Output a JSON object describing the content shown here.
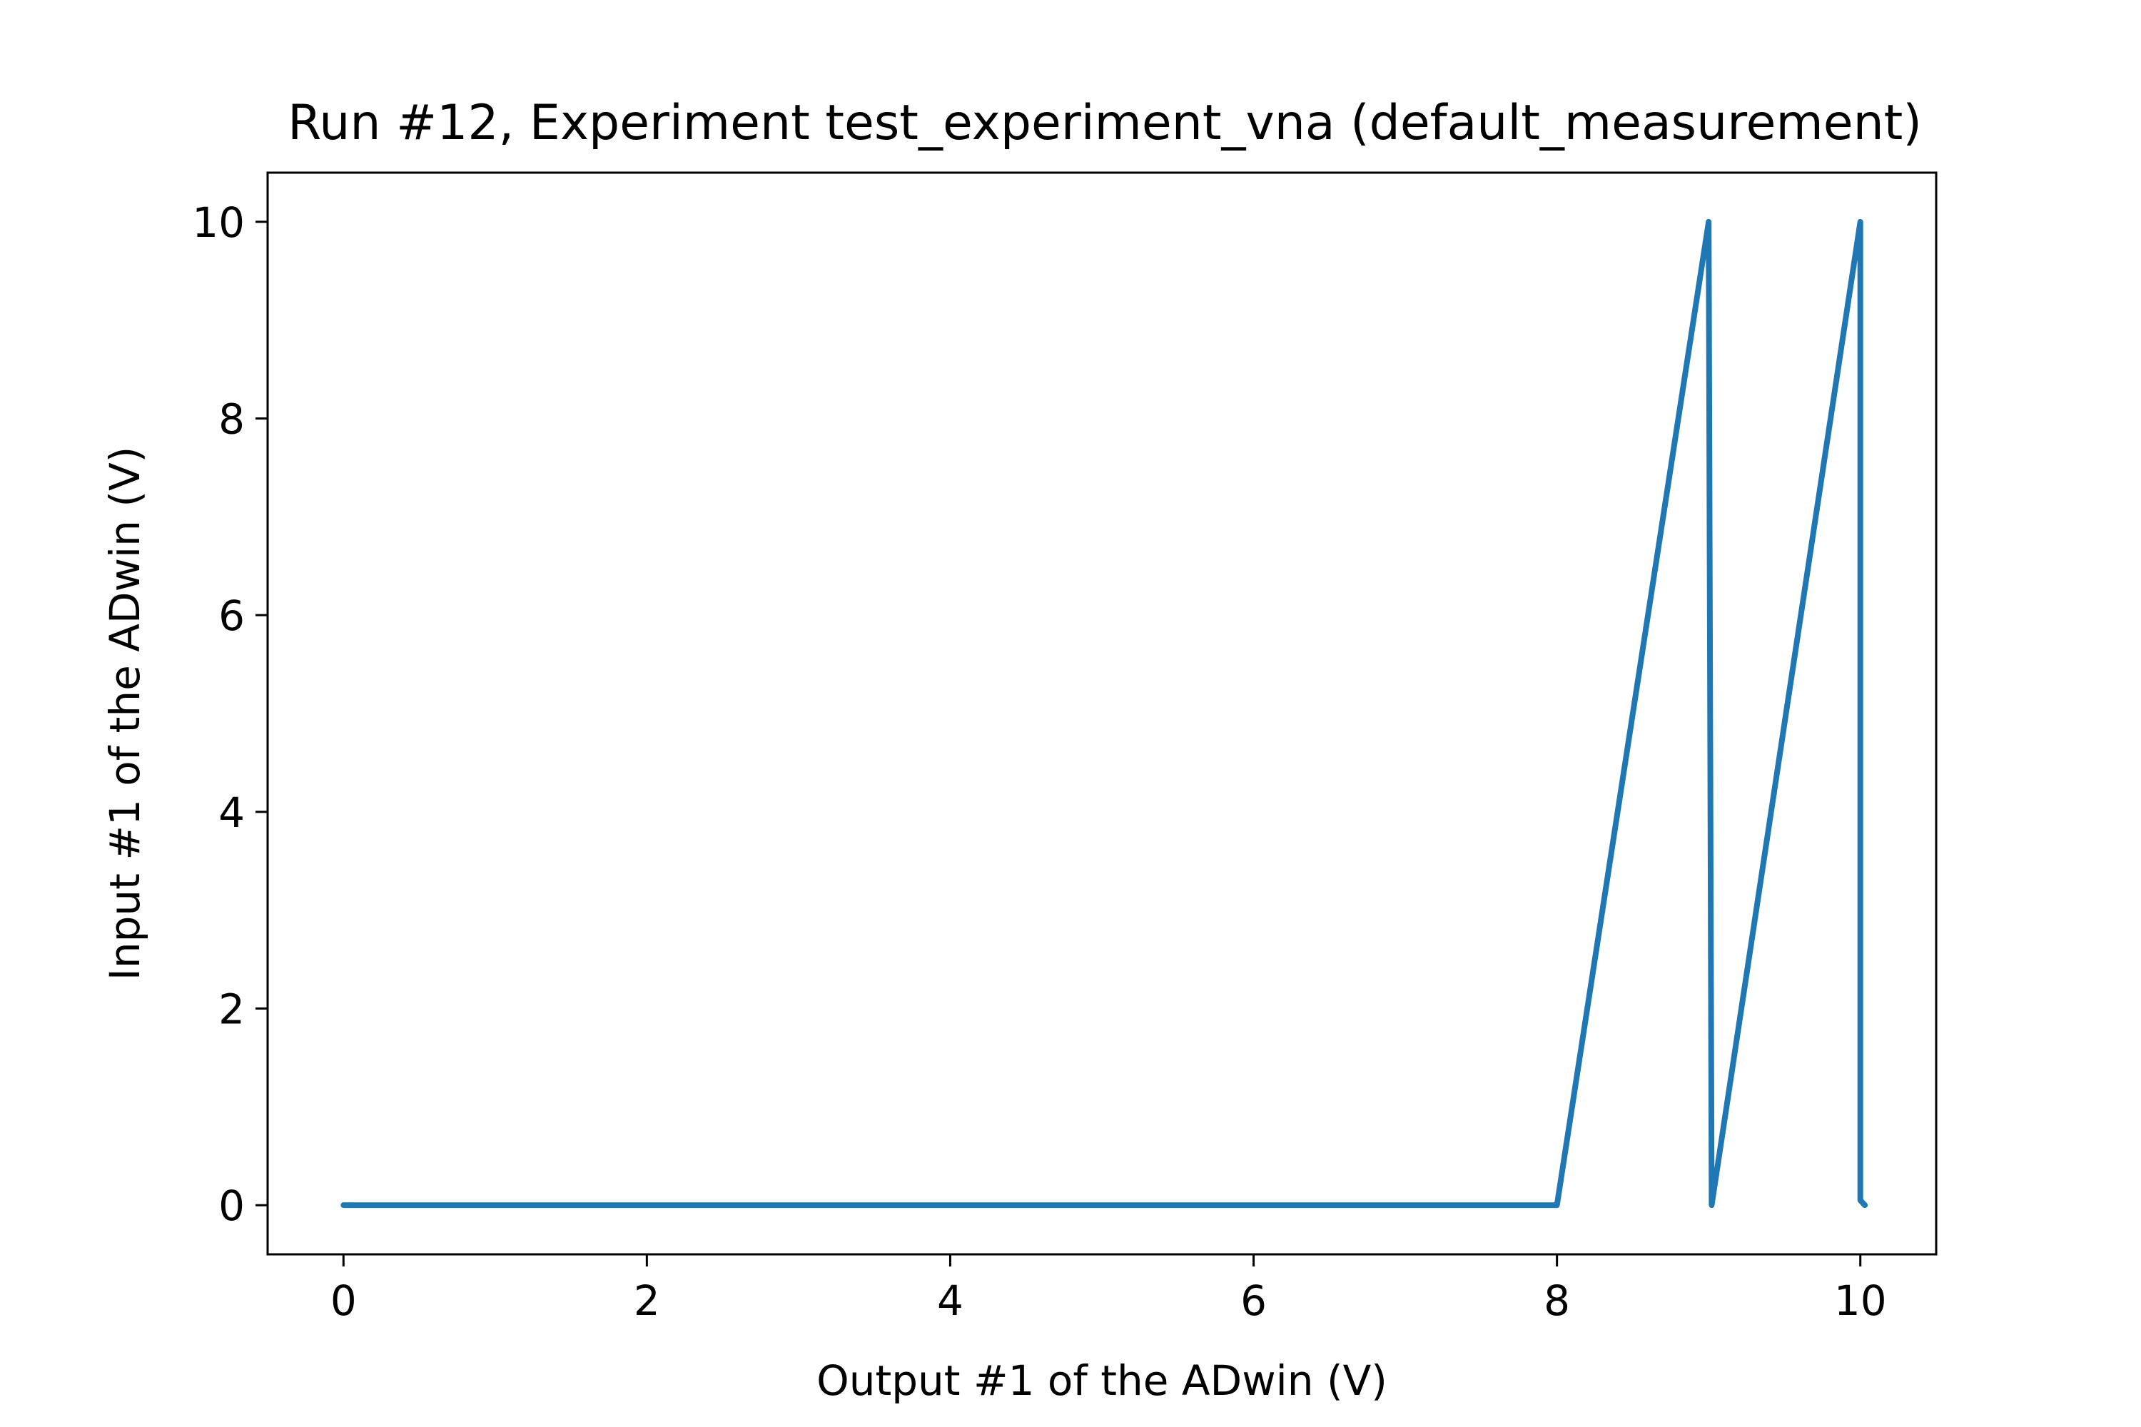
{
  "chart_data": {
    "type": "line",
    "title": "Run #12, Experiment test_experiment_vna (default_measurement)",
    "xlabel": "Output #1 of the ADwin (V)",
    "ylabel": "Input #1 of the ADwin (V)",
    "xlim": [
      -0.5,
      10.5
    ],
    "ylim": [
      -0.5,
      10.5
    ],
    "xticks": [
      0,
      2,
      4,
      6,
      8,
      10
    ],
    "xtick_labels": [
      "0",
      "2",
      "4",
      "6",
      "8",
      "10"
    ],
    "yticks": [
      0,
      2,
      4,
      6,
      8,
      10
    ],
    "ytick_labels": [
      "0",
      "2",
      "4",
      "6",
      "8",
      "10"
    ],
    "grid": false,
    "series": [
      {
        "color": "#1f77b4",
        "x": [
          0,
          8,
          9,
          9,
          9.02,
          10,
          10,
          10.03
        ],
        "y": [
          0,
          0,
          10,
          10,
          0,
          10,
          0.05,
          0
        ]
      }
    ]
  }
}
